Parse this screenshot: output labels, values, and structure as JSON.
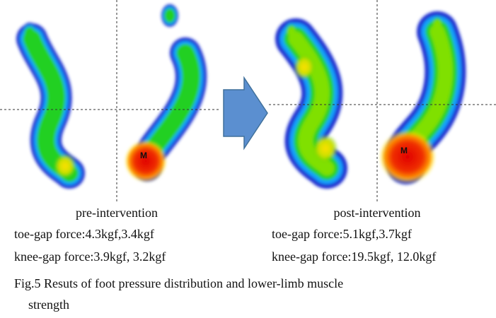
{
  "figure": {
    "panels": [
      {
        "label": "pre-intervention",
        "marker": "M",
        "lines": [
          "toe-gap force:4.3kgf,3.4kgf",
          "knee-gap force:3.9kgf, 3.2kgf"
        ]
      },
      {
        "label": "post-intervention",
        "marker": "M",
        "lines": [
          "toe-gap force:5.1kgf,3.7kgf",
          "knee-gap force:19.5kgf, 12.0kgf"
        ]
      }
    ],
    "caption": [
      "Fig.5 Resuts of foot pressure distribution and lower-limb muscle",
      "strength"
    ]
  }
}
